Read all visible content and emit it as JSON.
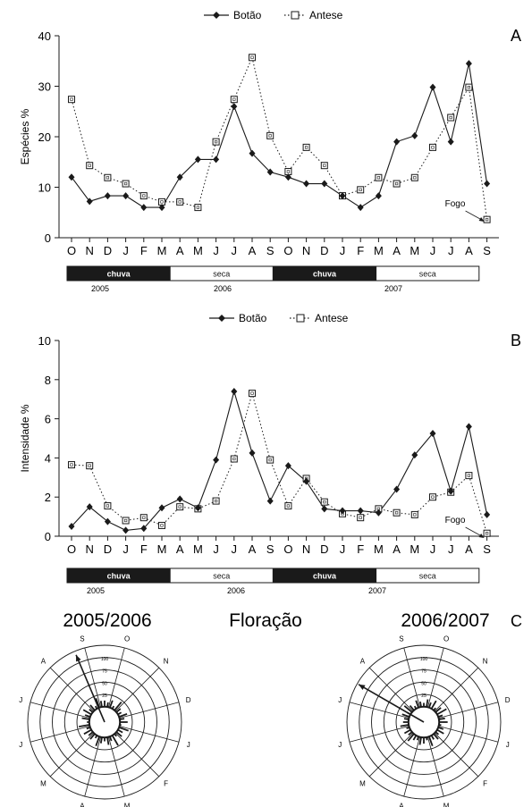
{
  "colors": {
    "line": "#1a1a1a",
    "dark_period": "#1a1a1a",
    "light_period": "#ffffff",
    "rose": "#1a1a1a"
  },
  "legend": {
    "series_a": "Botão",
    "series_b": "Antese"
  },
  "chart_data": [
    {
      "type": "line",
      "panel_label": "A",
      "ylabel": "Espécies %",
      "ylim": [
        0,
        40
      ],
      "yticks": [
        0,
        10,
        20,
        30,
        40
      ],
      "categories": [
        "O",
        "N",
        "D",
        "J",
        "F",
        "M",
        "A",
        "M",
        "J",
        "J",
        "A",
        "S",
        "O",
        "N",
        "D",
        "J",
        "F",
        "M",
        "A",
        "M",
        "J",
        "J",
        "A",
        "S"
      ],
      "series": [
        {
          "name": "Botão",
          "marker": "diamond",
          "style": "solid",
          "values": [
            12,
            7.2,
            8.3,
            8.3,
            6,
            6,
            12,
            15.5,
            15.5,
            26,
            16.7,
            13,
            12,
            10.7,
            10.7,
            8.3,
            6,
            8.3,
            19,
            20.2,
            29.8,
            19,
            34.5,
            10.7
          ]
        },
        {
          "name": "Antese",
          "marker": "square",
          "style": "dotted",
          "values": [
            27.4,
            14.3,
            11.9,
            10.7,
            8.3,
            7.1,
            7.1,
            6,
            19,
            27.4,
            35.7,
            20.2,
            13.1,
            17.9,
            14.3,
            8.3,
            9.5,
            11.9,
            10.7,
            11.9,
            17.9,
            23.8,
            29.8,
            3.6
          ]
        }
      ],
      "annotation": "Fogo",
      "periods": [
        {
          "label": "chuva",
          "dark": true,
          "start": 0,
          "end": 6
        },
        {
          "label": "seca",
          "dark": false,
          "start": 6,
          "end": 12
        },
        {
          "label": "chuva",
          "dark": true,
          "start": 12,
          "end": 18
        },
        {
          "label": "seca",
          "dark": false,
          "start": 18,
          "end": 24
        }
      ],
      "years": [
        "2005",
        "2006",
        "2007"
      ]
    },
    {
      "type": "line",
      "panel_label": "B",
      "ylabel": "Intensidade %",
      "ylim": [
        0,
        10
      ],
      "yticks": [
        0,
        2,
        4,
        6,
        8,
        10
      ],
      "categories": [
        "O",
        "N",
        "D",
        "J",
        "F",
        "M",
        "A",
        "M",
        "J",
        "J",
        "A",
        "S",
        "O",
        "N",
        "D",
        "J",
        "F",
        "M",
        "A",
        "M",
        "J",
        "J",
        "A",
        "S"
      ],
      "series": [
        {
          "name": "Botão",
          "marker": "diamond",
          "style": "solid",
          "values": [
            0.5,
            1.5,
            0.75,
            0.3,
            0.4,
            1.45,
            1.9,
            1.45,
            3.9,
            7.4,
            4.25,
            1.8,
            3.6,
            2.8,
            1.4,
            1.3,
            1.3,
            1.2,
            2.4,
            4.15,
            5.25,
            2.3,
            5.6,
            1.1
          ]
        },
        {
          "name": "Antese",
          "marker": "square",
          "style": "dotted",
          "values": [
            3.65,
            3.6,
            1.55,
            0.8,
            0.95,
            0.55,
            1.5,
            1.4,
            1.8,
            3.95,
            7.3,
            3.9,
            1.55,
            2.95,
            1.75,
            1.15,
            0.95,
            1.4,
            1.2,
            1.1,
            2.0,
            2.25,
            3.1,
            0.15
          ]
        }
      ],
      "annotation": "Fogo",
      "periods": [
        {
          "label": "chuva",
          "dark": true,
          "start": 0,
          "end": 6
        },
        {
          "label": "seca",
          "dark": false,
          "start": 6,
          "end": 12
        },
        {
          "label": "chuva",
          "dark": true,
          "start": 12,
          "end": 18
        },
        {
          "label": "seca",
          "dark": false,
          "start": 18,
          "end": 24
        }
      ],
      "years": [
        "2005",
        "2006",
        "2007"
      ]
    }
  ],
  "panel_c": {
    "label": "C",
    "title": "Floração",
    "roses": [
      {
        "title": "2005/2006",
        "month_labels": [
          "S",
          "O",
          "N",
          "D",
          "J",
          "F",
          "M",
          "A",
          "M",
          "J",
          "J",
          "A"
        ],
        "ring_labels": [
          "25",
          "50",
          "75",
          "100"
        ],
        "vector_month_angle": 337,
        "vector_length": 0.95,
        "bars": [
          0.28,
          0.26,
          0.3,
          0.24,
          0.34,
          0.27,
          0.25,
          0.31,
          0.26,
          0.3,
          0.22,
          0.33,
          0.27,
          0.29,
          0.24,
          0.35,
          0.26,
          0.3,
          0.25,
          0.28,
          0.33,
          0.24,
          0.29,
          0.27,
          0.31,
          0.25,
          0.34,
          0.23,
          0.3,
          0.27,
          0.32,
          0.26,
          0.29,
          0.24,
          0.33,
          0.28
        ]
      },
      {
        "title": "2006/2007",
        "month_labels": [
          "S",
          "O",
          "N",
          "D",
          "J",
          "F",
          "M",
          "A",
          "M",
          "J",
          "J",
          "A"
        ],
        "ring_labels": [
          "25",
          "50",
          "75",
          "100"
        ],
        "vector_month_angle": 300,
        "vector_length": 0.98,
        "bars": [
          0.25,
          0.3,
          0.27,
          0.32,
          0.24,
          0.29,
          0.34,
          0.26,
          0.28,
          0.31,
          0.23,
          0.27,
          0.3,
          0.25,
          0.29,
          0.26,
          0.33,
          0.24,
          0.28,
          0.3,
          0.25,
          0.27,
          0.32,
          0.26,
          0.29,
          0.24,
          0.31,
          0.27,
          0.26,
          0.3,
          0.25,
          0.33,
          0.28,
          0.24,
          0.3,
          0.27
        ]
      }
    ]
  }
}
